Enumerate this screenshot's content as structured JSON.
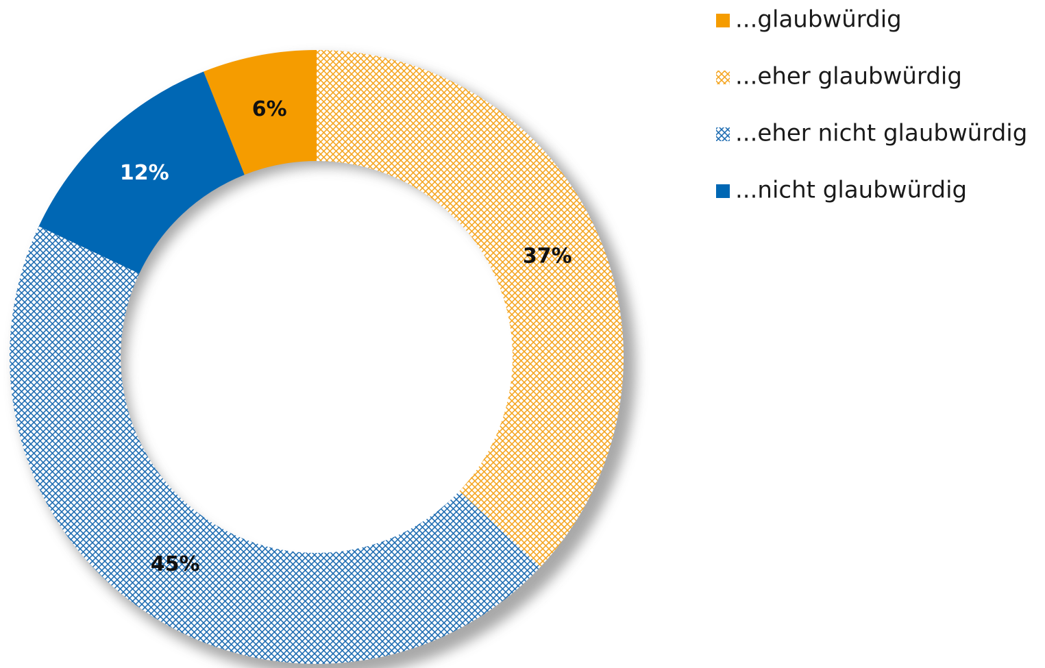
{
  "chart_data": {
    "type": "donut",
    "categories": [
      "...glaubwürdig",
      "...eher glaubwürdig",
      "...eher nicht glaubwürdig",
      "...nicht glaubwürdig"
    ],
    "values": [
      6,
      37,
      45,
      12
    ],
    "value_labels": [
      "6%",
      "37%",
      "45%",
      "12%"
    ],
    "colors": [
      "#f59c00",
      "#f5a623",
      "#1f6db2",
      "#0067b4"
    ],
    "patterns": [
      "solid",
      "crosshatch",
      "crosshatch",
      "solid"
    ],
    "legend": "right"
  }
}
